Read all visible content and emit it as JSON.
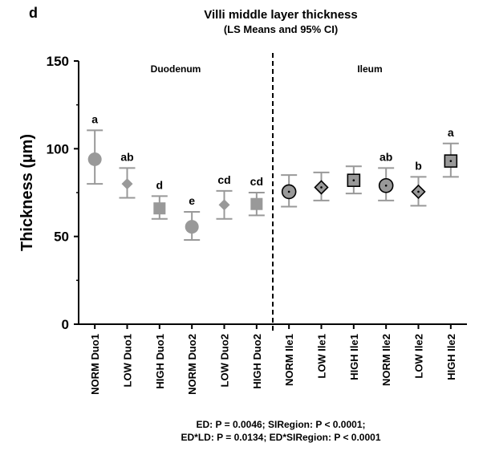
{
  "panel_letter": "d",
  "footnote": {
    "line1": "ED: P = 0.0046; SIRegion: P < 0.0001;",
    "line2": "ED*LD: P = 0.0134; ED*SIRegion: P < 0.0001"
  },
  "colors": {
    "marker_gray": "#999999",
    "divider": "#000000"
  },
  "chart_data": {
    "type": "scatter",
    "title": "Villi middle layer thickness",
    "subtitle": "(LS Means and 95% CI)",
    "ylabel": "Thickness (µm)",
    "xlabel": "",
    "ylim": [
      0,
      150
    ],
    "yticks": [
      0,
      50,
      100,
      150
    ],
    "grid": false,
    "regions": [
      "Duodenum",
      "Ileum"
    ],
    "categories": [
      "NORM Duo1",
      "LOW Duo1",
      "HIGH Duo1",
      "NORM Duo2",
      "LOW Duo2",
      "HIGH Duo2",
      "NORM Ile1",
      "LOW Ile1",
      "HIGH Ile1",
      "NORM Ile2",
      "LOW Ile2",
      "HIGH Ile2"
    ],
    "values": [
      94,
      80,
      66,
      55.5,
      68,
      68.5,
      75.5,
      78,
      82,
      79,
      75.5,
      93
    ],
    "ci_low": [
      80,
      72,
      60,
      48,
      60,
      62,
      67,
      70.5,
      74.5,
      70.5,
      67.5,
      84
    ],
    "ci_high": [
      110.5,
      89,
      73,
      64,
      76,
      75,
      85,
      86.5,
      90,
      89,
      84,
      103
    ],
    "letters": [
      "a",
      "ab",
      "d",
      "e",
      "cd",
      "cd",
      "",
      "",
      "",
      "ab",
      "b",
      "a"
    ],
    "markers": [
      "circle",
      "diamond",
      "square",
      "circle",
      "diamond",
      "square",
      "circle",
      "diamond",
      "square",
      "circle",
      "diamond",
      "square"
    ],
    "marker_style": [
      "filled",
      "filled",
      "filled",
      "filled",
      "filled",
      "filled",
      "dotted",
      "dotted",
      "dotted",
      "dotted",
      "dotted",
      "dotted"
    ]
  }
}
